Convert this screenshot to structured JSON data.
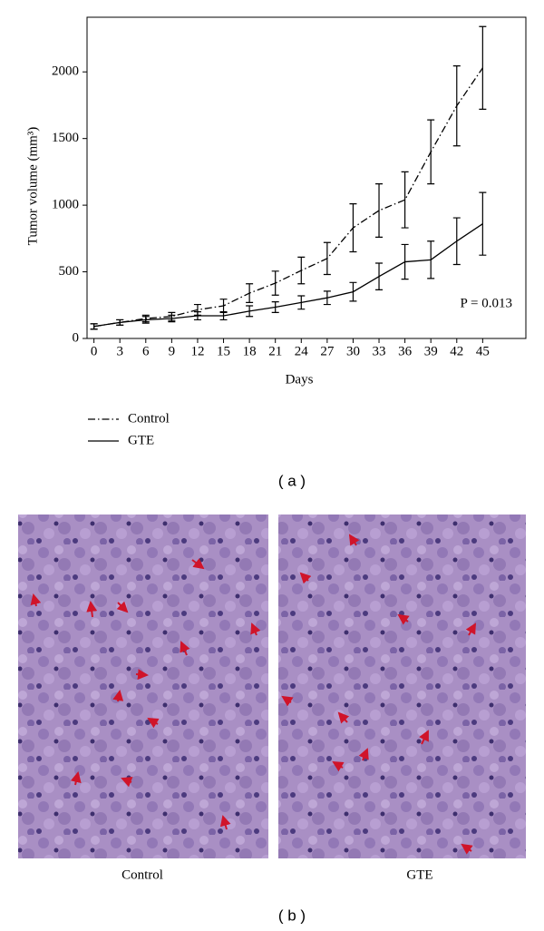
{
  "chart_data": {
    "type": "line",
    "ylabel": "Tumor volume (mm³)",
    "xlabel": "Days",
    "annotation": "P = 0.013",
    "x": [
      0,
      3,
      6,
      9,
      12,
      15,
      18,
      21,
      24,
      27,
      30,
      33,
      36,
      39,
      42,
      45
    ],
    "xlim": [
      -0.8,
      50
    ],
    "xticks": [
      0,
      3,
      6,
      9,
      12,
      15,
      18,
      21,
      24,
      27,
      30,
      33,
      36,
      39,
      42,
      45
    ],
    "ylim": [
      0,
      2410
    ],
    "yticks": [
      0,
      500,
      1000,
      1500,
      2000
    ],
    "series": [
      {
        "name": "Control",
        "color": "#000000",
        "linestyle": "dash-dot",
        "values": [
          90,
          120,
          150,
          165,
          215,
          245,
          340,
          415,
          510,
          600,
          830,
          960,
          1040,
          1400,
          1745,
          2030
        ],
        "errors": [
          20,
          20,
          25,
          30,
          40,
          50,
          70,
          90,
          100,
          120,
          180,
          200,
          210,
          240,
          300,
          310
        ]
      },
      {
        "name": "GTE",
        "color": "#000000",
        "linestyle": "solid",
        "values": [
          90,
          120,
          140,
          150,
          170,
          170,
          205,
          235,
          270,
          305,
          350,
          465,
          575,
          590,
          730,
          860
        ],
        "errors": [
          20,
          20,
          25,
          25,
          30,
          30,
          40,
          40,
          50,
          50,
          70,
          100,
          130,
          140,
          175,
          235
        ]
      }
    ]
  },
  "panel_a": "( a )",
  "panel_b": "( b )",
  "images": [
    {
      "label": "Control"
    },
    {
      "label": "GTE"
    }
  ]
}
